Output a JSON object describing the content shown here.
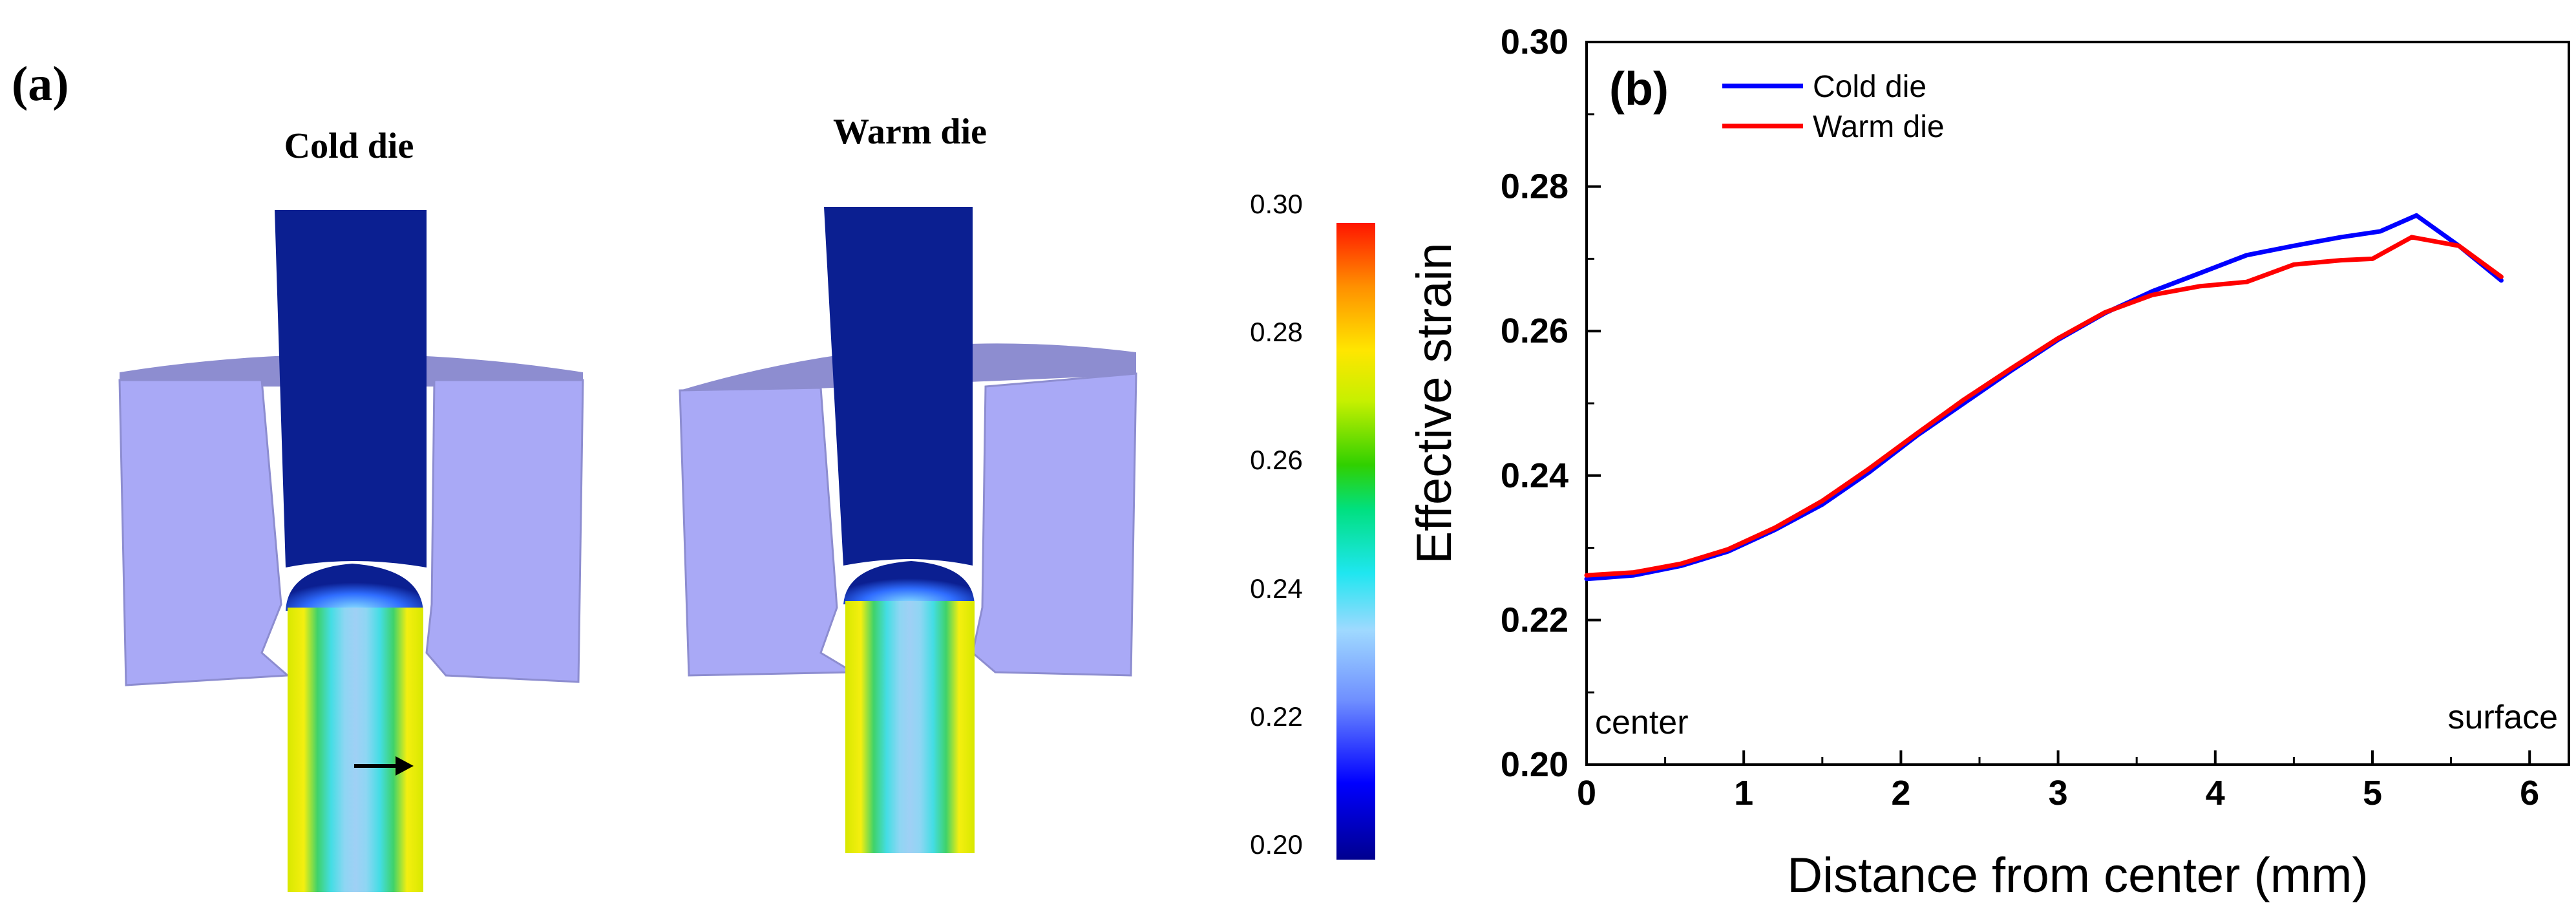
{
  "panel_a": {
    "label": "(a)",
    "titles": [
      "Cold die",
      "Warm die"
    ],
    "colorbar": {
      "ticks": [
        "0.30",
        "0.28",
        "0.26",
        "0.24",
        "0.22",
        "0.20"
      ],
      "min": 0.2,
      "max": 0.3
    },
    "colors": {
      "die": "#a9a9f6",
      "die_top": "#8d8dd0",
      "rod_undeformed": "#0b1f91",
      "arrow": "#000000"
    }
  },
  "chart_data": {
    "type": "line",
    "panel_label": "(b)",
    "title": "",
    "xlabel": "Distance from center (mm)",
    "ylabel": "Effective strain",
    "xlim": [
      0,
      6.25
    ],
    "ylim": [
      0.2,
      0.3
    ],
    "xticks": [
      "0",
      "1",
      "2",
      "3",
      "4",
      "5",
      "6"
    ],
    "yticks": [
      "0.20",
      "0.22",
      "0.24",
      "0.26",
      "0.28",
      "0.30"
    ],
    "grid": false,
    "legend_position": "top-left",
    "annotations": {
      "left": "center",
      "right": "surface"
    },
    "series": [
      {
        "name": "Cold die",
        "color": "#0000ff",
        "x": [
          0,
          0.3,
          0.6,
          0.9,
          1.2,
          1.5,
          1.8,
          2.1,
          2.4,
          2.7,
          3.0,
          3.3,
          3.6,
          3.9,
          4.2,
          4.5,
          4.8,
          5.05,
          5.28,
          5.55,
          5.82
        ],
        "y": [
          0.2257,
          0.2262,
          0.2275,
          0.2295,
          0.2325,
          0.236,
          0.2405,
          0.2455,
          0.25,
          0.2545,
          0.2588,
          0.2625,
          0.2655,
          0.268,
          0.2705,
          0.2718,
          0.273,
          0.2738,
          0.276,
          0.2718,
          0.267
        ]
      },
      {
        "name": "Warm die",
        "color": "#ff0000",
        "x": [
          0,
          0.3,
          0.6,
          0.9,
          1.2,
          1.5,
          1.8,
          2.1,
          2.4,
          2.7,
          3.0,
          3.3,
          3.6,
          3.9,
          4.2,
          4.5,
          4.8,
          5.0,
          5.25,
          5.55,
          5.82
        ],
        "y": [
          0.2262,
          0.2266,
          0.2278,
          0.2298,
          0.2328,
          0.2365,
          0.241,
          0.2458,
          0.2505,
          0.2548,
          0.259,
          0.2626,
          0.265,
          0.2662,
          0.2668,
          0.2692,
          0.2698,
          0.27,
          0.273,
          0.2718,
          0.2675
        ]
      }
    ]
  }
}
